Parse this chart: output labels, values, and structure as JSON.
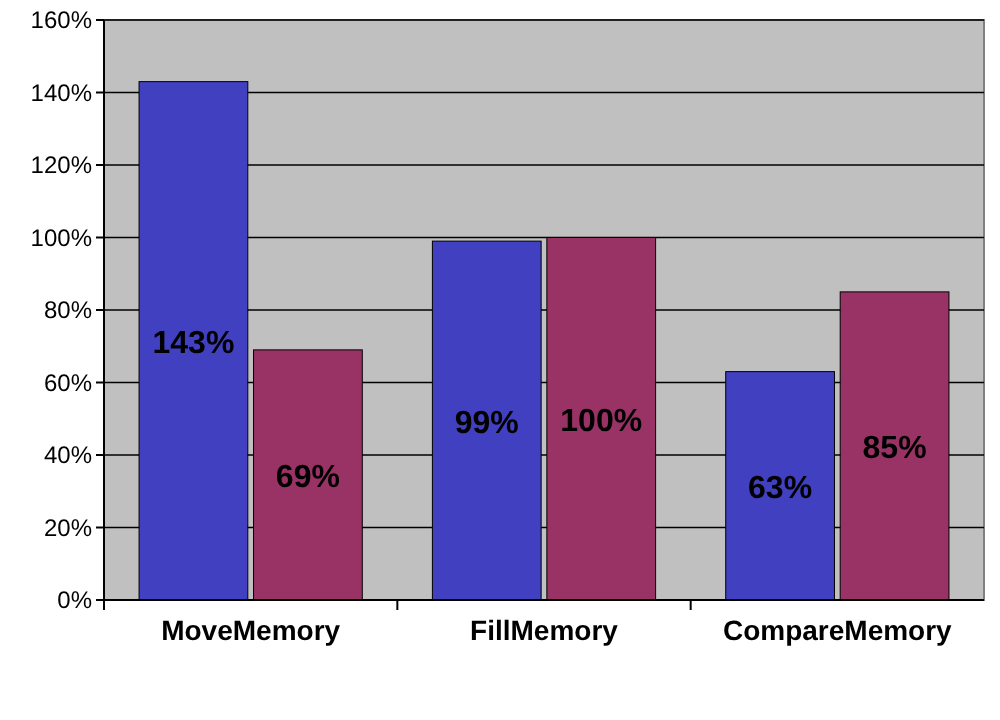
{
  "chart_data": {
    "type": "bar",
    "categories": [
      "MoveMemory",
      "FillMemory",
      "CompareMemory"
    ],
    "series": [
      {
        "color": "#4040c0",
        "values": [
          143,
          99,
          63
        ],
        "value_labels": [
          "143%",
          "99%",
          "63%"
        ]
      },
      {
        "color": "#993366",
        "values": [
          69,
          100,
          85
        ],
        "value_labels": [
          "69%",
          "100%",
          "85%"
        ]
      }
    ],
    "ylim": [
      0,
      160
    ],
    "yticks": [
      {
        "value": 0,
        "label": "0%"
      },
      {
        "value": 20,
        "label": "20%"
      },
      {
        "value": 40,
        "label": "40%"
      },
      {
        "value": 60,
        "label": "60%"
      },
      {
        "value": 80,
        "label": "80%"
      },
      {
        "value": 100,
        "label": "100%"
      },
      {
        "value": 120,
        "label": "120%"
      },
      {
        "value": 140,
        "label": "140%"
      },
      {
        "value": 160,
        "label": "160%"
      }
    ],
    "grid": "y"
  }
}
